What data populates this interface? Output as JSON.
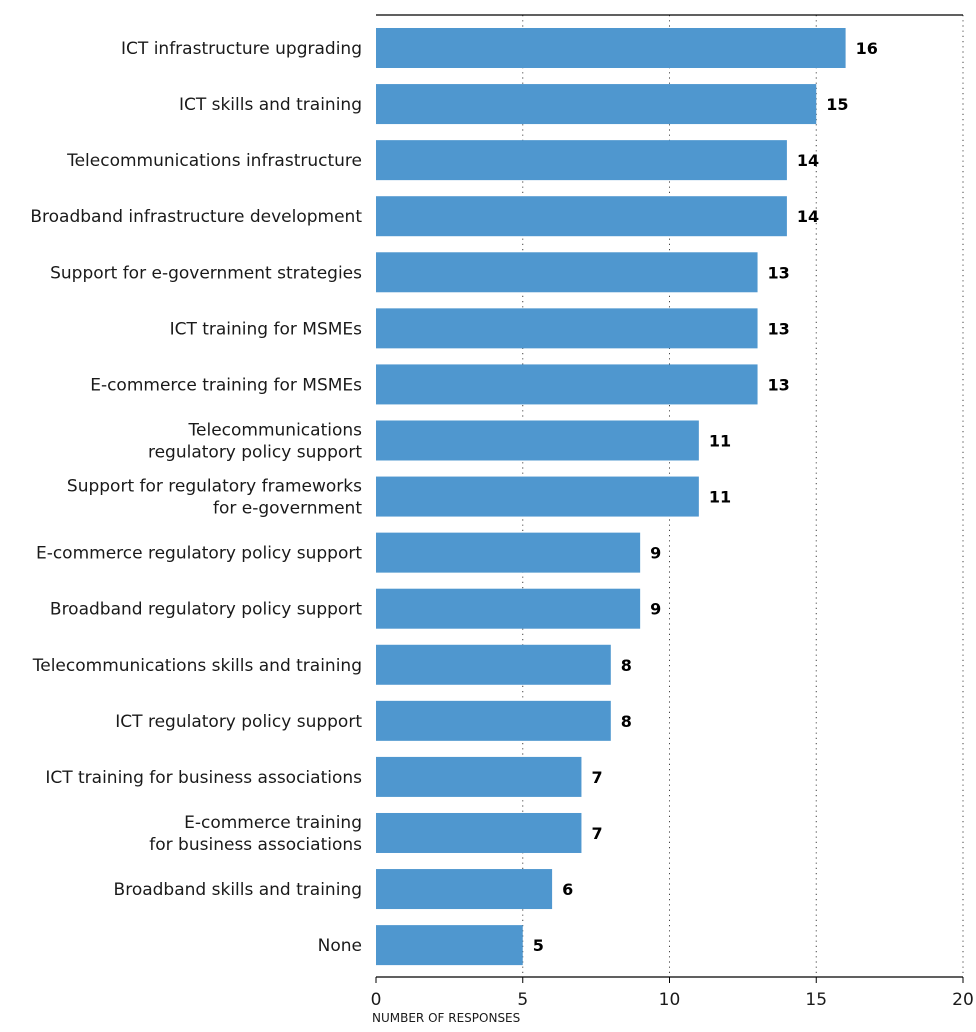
{
  "chart_data": {
    "type": "bar",
    "orientation": "horizontal",
    "categories": [
      "ICT infrastructure upgrading",
      "ICT skills and training",
      "Telecommunications infrastructure",
      "Broadband infrastructure development",
      "Support for e-government strategies",
      "ICT training for MSMEs",
      "E-commerce training for MSMEs",
      "Telecommunications\nregulatory policy support",
      "Support for regulatory frameworks\nfor e-government",
      "E-commerce regulatory policy support",
      "Broadband regulatory policy support",
      "Telecommunications skills and training",
      "ICT regulatory policy support",
      "ICT training for business associations",
      "E-commerce training\nfor business associations",
      "Broadband skills and  training",
      "None"
    ],
    "values": [
      16,
      15,
      14,
      14,
      13,
      13,
      13,
      11,
      11,
      9,
      9,
      8,
      8,
      7,
      7,
      6,
      5
    ],
    "xlabel": "NUMBER OF RESPONSES",
    "xlim": [
      0,
      20
    ],
    "xticks": [
      0,
      5,
      10,
      15,
      20
    ],
    "grid": "vertical dotted",
    "bar_color": "#4f97cf",
    "data_labels": true
  }
}
